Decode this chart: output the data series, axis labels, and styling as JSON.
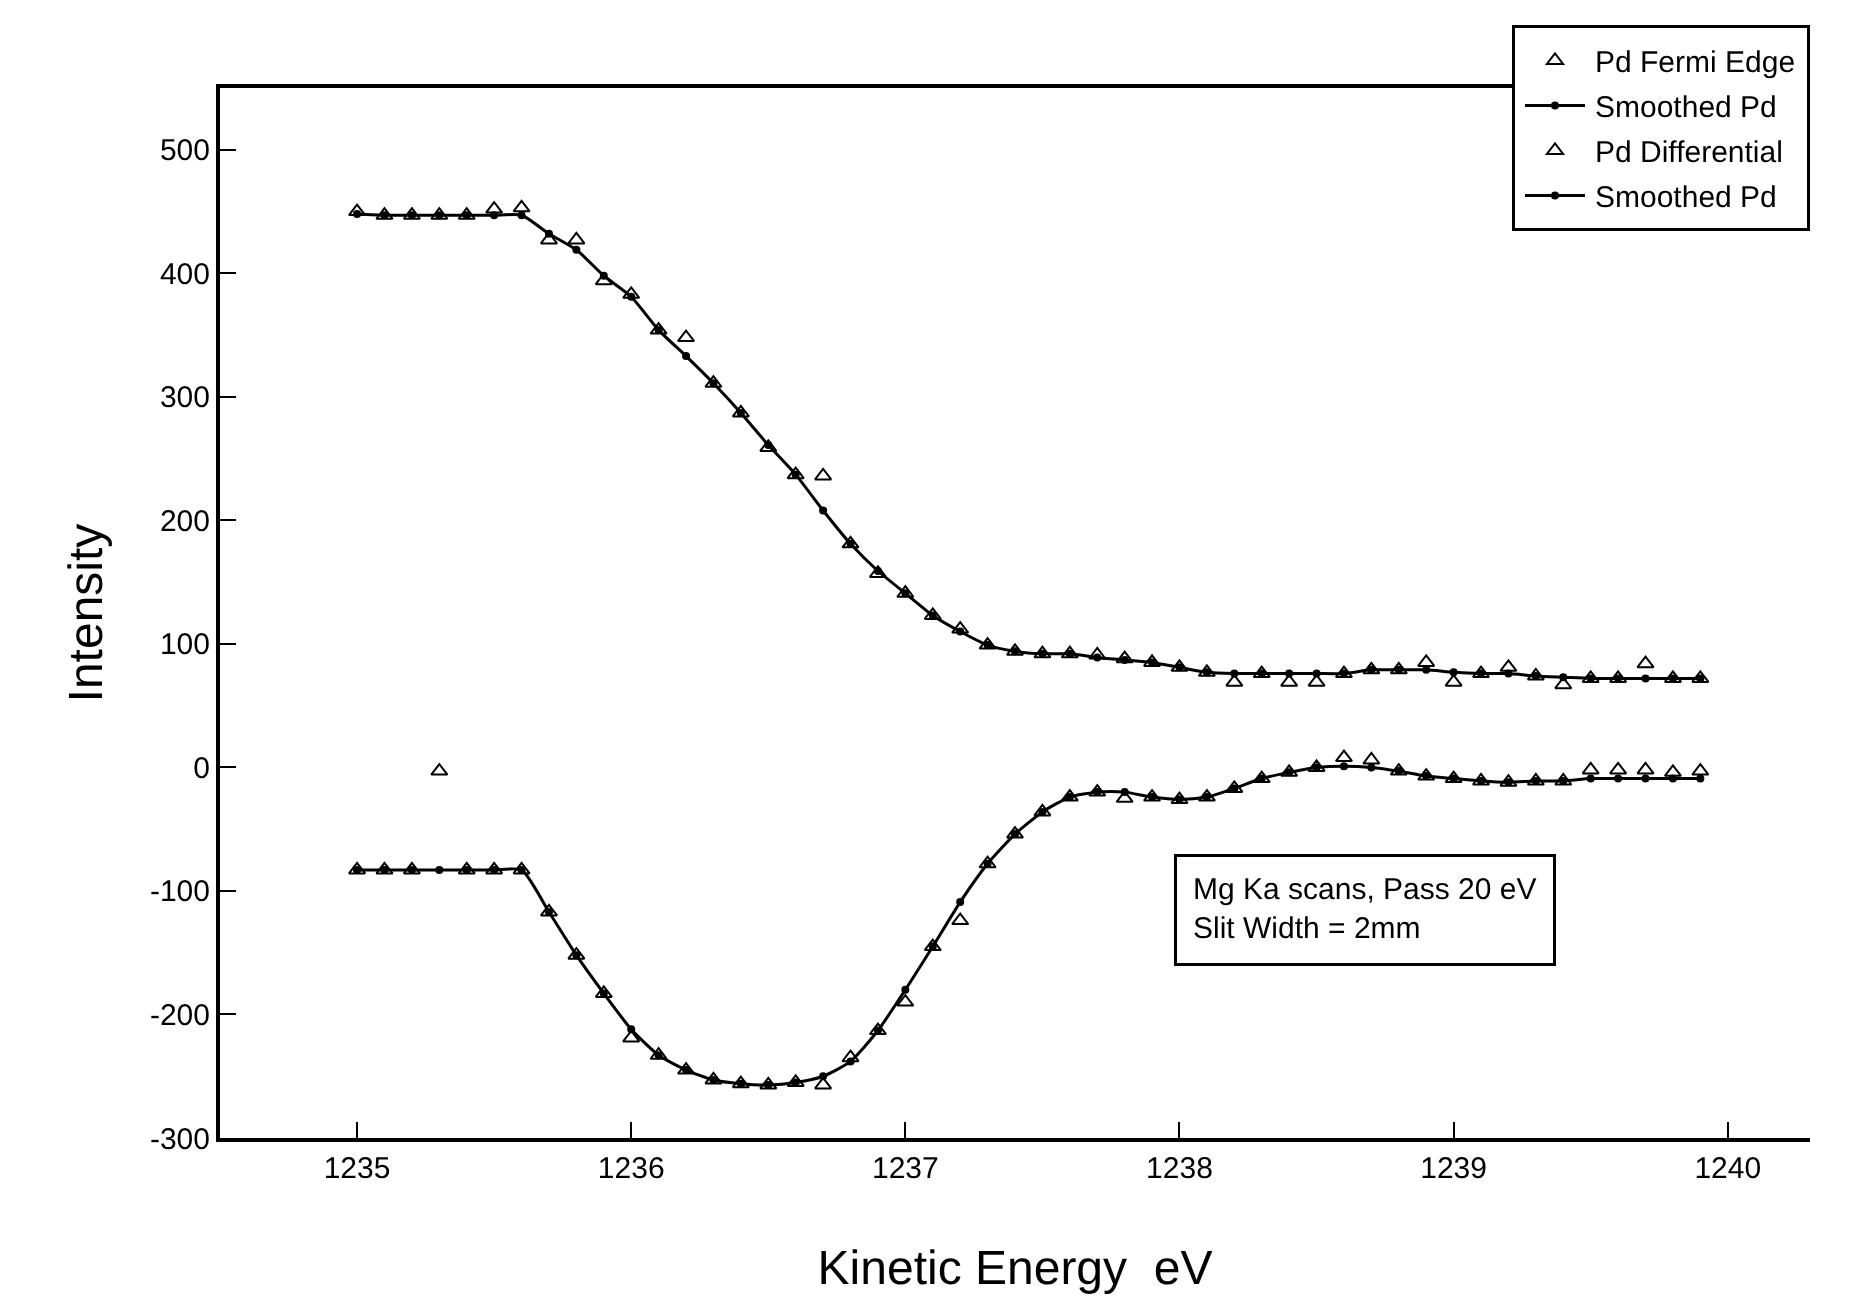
{
  "chart_data": {
    "type": "line",
    "xlabel": "Kinetic Energy  eV",
    "ylabel": "Intensity",
    "x": [
      1235.0,
      1235.1,
      1235.2,
      1235.3,
      1235.4,
      1235.5,
      1235.6,
      1235.7,
      1235.8,
      1235.9,
      1236.0,
      1236.1,
      1236.2,
      1236.3,
      1236.4,
      1236.5,
      1236.6,
      1236.7,
      1236.8,
      1236.9,
      1237.0,
      1237.1,
      1237.2,
      1237.3,
      1237.4,
      1237.5,
      1237.6,
      1237.7,
      1237.8,
      1237.9,
      1238.0,
      1238.1,
      1238.2,
      1238.3,
      1238.4,
      1238.5,
      1238.6,
      1238.7,
      1238.8,
      1238.9,
      1239.0,
      1239.1,
      1239.2,
      1239.3,
      1239.4,
      1239.5,
      1239.6,
      1239.7,
      1239.8,
      1239.9
    ],
    "series": [
      {
        "name": "Pd Fermi Edge",
        "type": "scatter",
        "marker": "triangle",
        "color": "#000000",
        "values": [
          450,
          447,
          447,
          447,
          447,
          452,
          453,
          427,
          427,
          394,
          383,
          354,
          348,
          311,
          287,
          259,
          237,
          236,
          181,
          157,
          141,
          123,
          112,
          99,
          94,
          92,
          92,
          91,
          88,
          85,
          81,
          77,
          69,
          76,
          69,
          69,
          76,
          79,
          79,
          85,
          69,
          76,
          81,
          74,
          67,
          72,
          72,
          84,
          72,
          72
        ]
      },
      {
        "name": "Smoothed Pd",
        "marker": "circle",
        "color": "#000000",
        "values": [
          448,
          447,
          447,
          447,
          447,
          447,
          447,
          432,
          419,
          398,
          381,
          354,
          333,
          311,
          287,
          261,
          237,
          208,
          181,
          159,
          141,
          123,
          110,
          99,
          94,
          92,
          92,
          89,
          87,
          85,
          81,
          77,
          76,
          76,
          76,
          76,
          76,
          79,
          79,
          79,
          77,
          76,
          76,
          74,
          73,
          72,
          72,
          72,
          72,
          72
        ]
      },
      {
        "name": "Pd Differential",
        "type": "scatter",
        "marker": "triangle",
        "color": "#000000",
        "values": [
          -83,
          -83,
          -83,
          -3,
          -83,
          -83,
          -83,
          -117,
          -152,
          -183,
          -219,
          -233,
          -245,
          -253,
          -256,
          -257,
          -255,
          -257,
          -235,
          -213,
          -190,
          -145,
          -124,
          -78,
          -54,
          -36,
          -24,
          -20,
          -25,
          -24,
          -26,
          -24,
          -17,
          -9,
          -4,
          0,
          8,
          6,
          -3,
          -7,
          -9,
          -11,
          -12,
          -11,
          -11,
          -2,
          -2,
          -2,
          -4,
          -3
        ]
      },
      {
        "name": "Smoothed Pd",
        "marker": "circle",
        "color": "#000000",
        "values": [
          -83,
          -83,
          -83,
          -83,
          -83,
          -83,
          -83,
          -117,
          -152,
          -183,
          -212,
          -233,
          -245,
          -253,
          -256,
          -257,
          -255,
          -250,
          -238,
          -213,
          -180,
          -145,
          -109,
          -78,
          -54,
          -36,
          -24,
          -20,
          -20,
          -24,
          -26,
          -24,
          -17,
          -9,
          -4,
          0,
          1,
          0,
          -3,
          -7,
          -9,
          -11,
          -12,
          -11,
          -11,
          -9,
          -9,
          -9,
          -9,
          -9
        ]
      }
    ],
    "xlim": [
      1234.5,
      1240.3
    ],
    "xticks": [
      1235,
      1236,
      1237,
      1238,
      1239,
      1240
    ],
    "ylim": [
      -300,
      550
    ],
    "yticks": [
      -300,
      -200,
      -100,
      0,
      100,
      200,
      300,
      400,
      500
    ],
    "grid": false,
    "legend": "top right",
    "line_style": "solid",
    "annotations": [
      "Mg Ka scans, Pass 20 eV\nSlit Width = 2mm"
    ]
  }
}
